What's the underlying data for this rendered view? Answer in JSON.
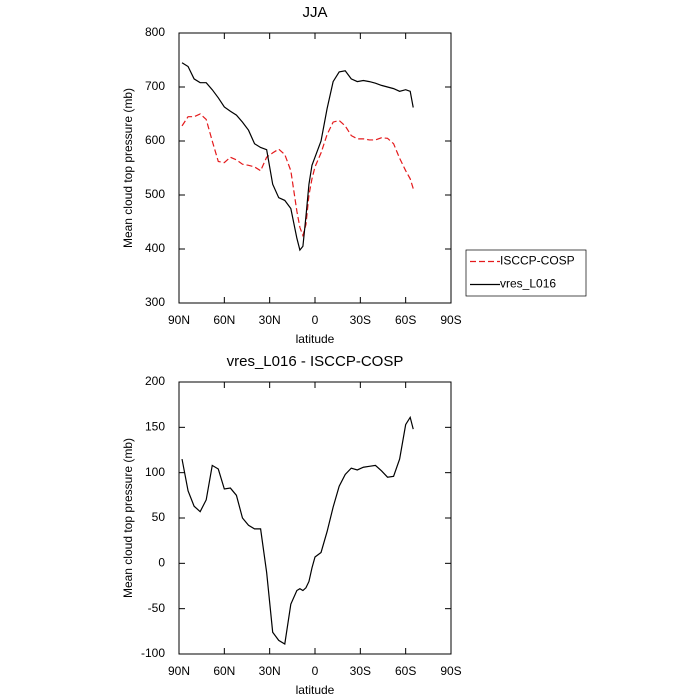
{
  "chart_data": [
    {
      "type": "line",
      "title": "JJA",
      "x_label": "latitude",
      "y_label": "Mean cloud top pressure (mb)",
      "x": [
        88,
        84,
        80,
        76,
        72,
        68,
        64,
        60,
        56,
        52,
        48,
        44,
        40,
        36,
        32,
        28,
        24,
        20,
        16,
        12,
        10,
        8,
        6,
        4,
        2,
        0,
        -4,
        -8,
        -12,
        -16,
        -20,
        -24,
        -28,
        -32,
        -36,
        -40,
        -44,
        -48,
        -52,
        -56,
        -60,
        -63,
        -65
      ],
      "series": [
        {
          "name": "ISCCP-COSP",
          "color": "#e41a1c",
          "dashed": true,
          "values": [
            628,
            645,
            645,
            650,
            640,
            600,
            562,
            560,
            570,
            565,
            557,
            555,
            552,
            545,
            570,
            578,
            585,
            575,
            545,
            470,
            440,
            425,
            445,
            500,
            530,
            552,
            578,
            612,
            635,
            638,
            628,
            610,
            604,
            604,
            602,
            602,
            606,
            605,
            595,
            568,
            545,
            530,
            512
          ]
        },
        {
          "name": "vres_L016",
          "color": "#000000",
          "dashed": false,
          "values": [
            745,
            738,
            715,
            708,
            708,
            695,
            680,
            663,
            655,
            648,
            635,
            620,
            595,
            588,
            584,
            520,
            495,
            490,
            475,
            420,
            398,
            405,
            460,
            520,
            555,
            570,
            600,
            660,
            710,
            728,
            730,
            715,
            710,
            712,
            710,
            707,
            703,
            700,
            697,
            692,
            695,
            692,
            662
          ]
        }
      ],
      "xlim": [
        90,
        -90
      ],
      "xticks": [
        {
          "value": 90,
          "label": "90N"
        },
        {
          "value": 60,
          "label": "60N"
        },
        {
          "value": 30,
          "label": "30N"
        },
        0,
        {
          "value": -30,
          "label": "30S"
        },
        {
          "value": -60,
          "label": "60S"
        },
        {
          "value": -90,
          "label": "90S"
        }
      ],
      "ylim": [
        300,
        800
      ],
      "yticks": [
        300,
        400,
        500,
        600,
        700,
        800
      ],
      "legend": "right"
    },
    {
      "type": "line",
      "title": "vres_L016 - ISCCP-COSP",
      "x_label": "latitude",
      "y_label": "Mean cloud top pressure (mb)",
      "x": [
        88,
        84,
        80,
        76,
        72,
        68,
        64,
        60,
        56,
        52,
        48,
        44,
        40,
        36,
        32,
        28,
        24,
        20,
        16,
        12,
        10,
        8,
        6,
        4,
        2,
        0,
        -4,
        -8,
        -12,
        -16,
        -20,
        -24,
        -28,
        -32,
        -36,
        -40,
        -44,
        -48,
        -52,
        -56,
        -60,
        -63,
        -65
      ],
      "values": [
        115,
        80,
        63,
        57,
        70,
        108,
        104,
        82,
        83,
        75,
        50,
        42,
        38,
        38,
        -10,
        -76,
        -85,
        -89,
        -45,
        -30,
        -28,
        -30,
        -27,
        -20,
        -5,
        7,
        12,
        35,
        62,
        85,
        98,
        105,
        103,
        106,
        107,
        108,
        102,
        95,
        96,
        115,
        153,
        161,
        148
      ],
      "color": "#000000",
      "xlim": [
        90,
        -90
      ],
      "xticks": [
        {
          "value": 90,
          "label": "90N"
        },
        {
          "value": 60,
          "label": "60N"
        },
        {
          "value": 30,
          "label": "30N"
        },
        0,
        {
          "value": -30,
          "label": "30S"
        },
        {
          "value": -60,
          "label": "60S"
        },
        {
          "value": -90,
          "label": "90S"
        }
      ],
      "ylim": [
        -100,
        200
      ],
      "yticks": [
        -100,
        -50,
        0,
        50,
        100,
        150,
        200
      ]
    }
  ]
}
